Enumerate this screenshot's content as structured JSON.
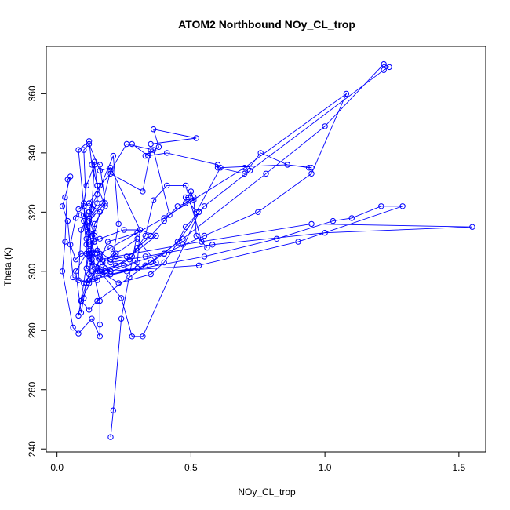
{
  "chart_data": {
    "type": "line",
    "title": "ATOM2 Northbound NOy_CL_trop",
    "xlabel": "NOy_CL_trop",
    "ylabel": "Theta (K)",
    "xlim": [
      -0.04,
      1.6
    ],
    "ylim": [
      239,
      376
    ],
    "x_ticks": [
      0.0,
      0.5,
      1.0,
      1.5
    ],
    "x_tick_labels": [
      "0.0",
      "0.5",
      "1.0",
      "1.5"
    ],
    "y_ticks": [
      240,
      260,
      280,
      300,
      320,
      340,
      360
    ],
    "y_tick_labels": [
      "240",
      "260",
      "280",
      "300",
      "320",
      "340",
      "360"
    ],
    "grid": false,
    "series_color": "#0000ff",
    "series": [
      {
        "points": [
          [
            0.2,
            244
          ],
          [
            0.21,
            253
          ],
          [
            0.24,
            284
          ],
          [
            0.3,
            313
          ],
          [
            0.19,
            310
          ],
          [
            0.12,
            296
          ],
          [
            0.08,
            297
          ],
          [
            0.09,
            314
          ],
          [
            0.13,
            321
          ],
          [
            0.14,
            337
          ],
          [
            0.16,
            336
          ],
          [
            0.18,
            323
          ],
          [
            0.12,
            317
          ],
          [
            0.11,
            306
          ],
          [
            0.07,
            300
          ],
          [
            0.09,
            286
          ],
          [
            0.1,
            291
          ],
          [
            0.13,
            304
          ],
          [
            0.12,
            320
          ],
          [
            0.15,
            326
          ],
          [
            0.21,
            339
          ],
          [
            0.23,
            316
          ],
          [
            0.21,
            306
          ],
          [
            0.15,
            301
          ],
          [
            0.09,
            290
          ],
          [
            0.08,
            285
          ],
          [
            0.1,
            296
          ],
          [
            0.12,
            309
          ],
          [
            0.11,
            319
          ],
          [
            0.1,
            341
          ],
          [
            0.12,
            343
          ],
          [
            0.16,
            334
          ],
          [
            0.2,
            335
          ],
          [
            0.31,
            314
          ],
          [
            0.3,
            303
          ],
          [
            0.2,
            300
          ],
          [
            0.13,
            303
          ],
          [
            0.11,
            311
          ],
          [
            0.1,
            322
          ],
          [
            0.08,
            341
          ],
          [
            0.12,
            344
          ],
          [
            0.13,
            336
          ],
          [
            0.15,
            329
          ],
          [
            0.18,
            322
          ],
          [
            0.14,
            316
          ],
          [
            0.13,
            304
          ],
          [
            0.17,
            299
          ],
          [
            0.24,
            291
          ],
          [
            0.28,
            278
          ],
          [
            0.32,
            278
          ],
          [
            0.53,
            320
          ],
          [
            0.4,
            303
          ],
          [
            0.35,
            299
          ],
          [
            0.23,
            296
          ],
          [
            0.16,
            300
          ],
          [
            0.14,
            306
          ],
          [
            0.12,
            313
          ],
          [
            0.13,
            319
          ],
          [
            0.17,
            323
          ],
          [
            0.2,
            334
          ],
          [
            0.26,
            343
          ],
          [
            0.36,
            341
          ],
          [
            0.42,
            319
          ],
          [
            0.51,
            325
          ],
          [
            0.52,
            312
          ],
          [
            0.56,
            308
          ],
          [
            0.54,
            310
          ],
          [
            0.48,
            329
          ],
          [
            0.41,
            329
          ],
          [
            0.36,
            324
          ],
          [
            0.33,
            312
          ],
          [
            0.27,
            304
          ],
          [
            0.18,
            300
          ],
          [
            0.15,
            297
          ],
          [
            0.11,
            296
          ],
          [
            0.06,
            298
          ],
          [
            0.04,
            317
          ],
          [
            0.02,
            322
          ],
          [
            0.03,
            325
          ],
          [
            0.05,
            332
          ],
          [
            0.04,
            331
          ],
          [
            0.03,
            310
          ],
          [
            0.02,
            300
          ],
          [
            0.06,
            281
          ],
          [
            0.08,
            279
          ],
          [
            0.13,
            284
          ],
          [
            0.16,
            278
          ],
          [
            0.16,
            282
          ],
          [
            0.16,
            290
          ],
          [
            0.13,
            302
          ],
          [
            0.12,
            307
          ],
          [
            0.17,
            303
          ],
          [
            0.22,
            306
          ],
          [
            0.3,
            311
          ],
          [
            0.37,
            303
          ],
          [
            0.33,
            302
          ],
          [
            0.3,
            301
          ],
          [
            0.2,
            299
          ],
          [
            0.15,
            300
          ],
          [
            0.12,
            305
          ],
          [
            0.14,
            313
          ],
          [
            0.16,
            320
          ],
          [
            0.12,
            323
          ],
          [
            0.08,
            321
          ],
          [
            0.07,
            318
          ],
          [
            0.05,
            309
          ],
          [
            0.07,
            304
          ],
          [
            0.09,
            306
          ],
          [
            0.13,
            306
          ],
          [
            0.15,
            307
          ],
          [
            0.2,
            304
          ],
          [
            0.26,
            305
          ],
          [
            0.3,
            307
          ],
          [
            0.37,
            312
          ],
          [
            0.31,
            314
          ],
          [
            0.25,
            314
          ],
          [
            0.16,
            311
          ],
          [
            0.14,
            310
          ],
          [
            0.12,
            310
          ],
          [
            0.1,
            322
          ],
          [
            0.12,
            323
          ],
          [
            0.16,
            329
          ],
          [
            0.2,
            333
          ],
          [
            0.32,
            327
          ],
          [
            0.35,
            341
          ],
          [
            0.33,
            339
          ],
          [
            0.38,
            342
          ],
          [
            0.36,
            348
          ],
          [
            0.52,
            345
          ],
          [
            0.35,
            343
          ],
          [
            0.28,
            343
          ],
          [
            0.34,
            339
          ],
          [
            0.41,
            340
          ],
          [
            0.6,
            336
          ],
          [
            0.6,
            335
          ],
          [
            0.7,
            333
          ],
          [
            0.76,
            340
          ],
          [
            0.86,
            336
          ],
          [
            0.94,
            335
          ],
          [
            0.95,
            335
          ],
          [
            0.86,
            336
          ],
          [
            0.61,
            335
          ],
          [
            0.52,
            320
          ],
          [
            0.48,
            325
          ],
          [
            0.49,
            325
          ],
          [
            0.5,
            327
          ],
          [
            0.51,
            324
          ],
          [
            0.48,
            323
          ],
          [
            0.45,
            322
          ],
          [
            0.4,
            317
          ],
          [
            0.35,
            312
          ],
          [
            0.3,
            308
          ],
          [
            0.28,
            305
          ],
          [
            0.22,
            302
          ],
          [
            0.18,
            301
          ],
          [
            0.12,
            299
          ],
          [
            0.09,
            290
          ],
          [
            0.12,
            287
          ],
          [
            0.15,
            290
          ],
          [
            0.27,
            298
          ],
          [
            0.47,
            311
          ],
          [
            0.78,
            333
          ],
          [
            1.0,
            349
          ],
          [
            1.22,
            370
          ],
          [
            1.24,
            369
          ],
          [
            1.22,
            368
          ],
          [
            0.72,
            334
          ],
          [
            0.55,
            322
          ],
          [
            0.53,
            320
          ],
          [
            0.48,
            315
          ],
          [
            0.45,
            310
          ],
          [
            0.4,
            306
          ],
          [
            0.35,
            303
          ],
          [
            0.3,
            301
          ],
          [
            0.2,
            300
          ],
          [
            0.14,
            298
          ],
          [
            0.12,
            297
          ],
          [
            0.26,
            300
          ],
          [
            0.55,
            305
          ],
          [
            0.82,
            311
          ],
          [
            1.03,
            317
          ],
          [
            1.1,
            318
          ],
          [
            1.21,
            322
          ],
          [
            1.29,
            322
          ],
          [
            0.9,
            310
          ],
          [
            0.53,
            302
          ],
          [
            0.2,
            300
          ],
          [
            0.16,
            304
          ],
          [
            0.22,
            305
          ],
          [
            0.47,
            309
          ],
          [
            0.95,
            316
          ],
          [
            1.55,
            315
          ],
          [
            1.0,
            313
          ],
          [
            0.58,
            309
          ],
          [
            0.33,
            305
          ],
          [
            0.2,
            303
          ],
          [
            0.16,
            305
          ],
          [
            0.14,
            312
          ],
          [
            0.12,
            318
          ],
          [
            0.15,
            323
          ],
          [
            0.15,
            329
          ],
          [
            0.14,
            336
          ],
          [
            0.11,
            329
          ],
          [
            0.1,
            323
          ],
          [
            0.09,
            319
          ],
          [
            0.11,
            315
          ],
          [
            0.13,
            312
          ],
          [
            0.14,
            310
          ],
          [
            0.12,
            306
          ],
          [
            0.11,
            301
          ],
          [
            0.13,
            300
          ],
          [
            0.16,
            300
          ],
          [
            0.25,
            302
          ],
          [
            0.4,
            306
          ],
          [
            0.55,
            312
          ],
          [
            0.75,
            320
          ],
          [
            0.95,
            333
          ],
          [
            1.08,
            360
          ],
          [
            0.7,
            335
          ],
          [
            0.4,
            318
          ],
          [
            0.3,
            313
          ],
          [
            0.2,
            308
          ],
          [
            0.16,
            306
          ],
          [
            0.11,
            309
          ],
          [
            0.1,
            317
          ]
        ]
      }
    ]
  }
}
